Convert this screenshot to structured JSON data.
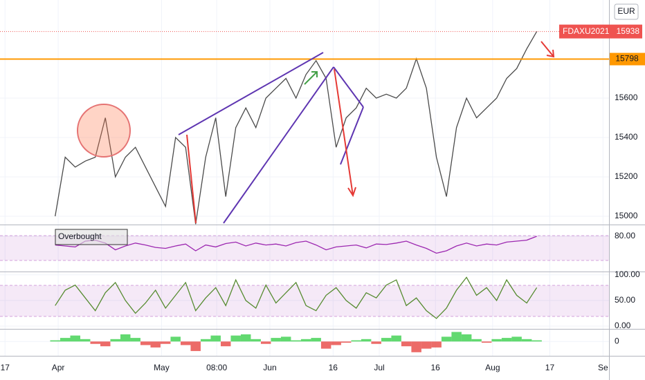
{
  "chart_data": [
    {
      "type": "line",
      "color": "#4a4a4a",
      "values": [
        15000,
        15300,
        15250,
        15280,
        15300,
        15500,
        15200,
        15300,
        15350,
        15250,
        15150,
        15050,
        15400,
        15350,
        14960,
        15300,
        15500,
        15100,
        15450,
        15550,
        15450,
        15600,
        15650,
        15700,
        15600,
        15720,
        15790,
        15700,
        15350,
        15500,
        15550,
        15650,
        15600,
        15620,
        15600,
        15650,
        15800,
        15650,
        15300,
        15100,
        15450,
        15600,
        15500,
        15550,
        15600,
        15700,
        15750,
        15850,
        15938
      ],
      "ylim": [
        14958,
        16098
      ],
      "yticks": [
        15000,
        15200,
        15400,
        15600
      ],
      "xlim": [
        -5.5,
        55.2
      ],
      "xticks": [
        {
          "value": -5.0,
          "label": "17"
        },
        {
          "value": 0.3,
          "label": "Apr"
        },
        {
          "value": 10.6,
          "label": "May"
        },
        {
          "value": 16.1,
          "label": "08:00"
        },
        {
          "value": 21.4,
          "label": "Jun"
        },
        {
          "value": 27.7,
          "label": "16"
        },
        {
          "value": 32.3,
          "label": "Jul"
        },
        {
          "value": 37.9,
          "label": "16"
        },
        {
          "value": 43.6,
          "label": "Aug"
        },
        {
          "value": 49.3,
          "label": "17"
        },
        {
          "value": 54.6,
          "label": "Se"
        }
      ],
      "currency": "EUR",
      "symbol": "FDAXU2021",
      "last_price": 15938,
      "last_color": "#ef5350",
      "level": 15798,
      "level_color": "#ff9800",
      "grid": true
    },
    {
      "type": "line",
      "color": "#9c27b0",
      "annotation": "Overbought",
      "values": [
        62,
        60,
        58,
        70,
        72,
        66,
        52,
        60,
        66,
        62,
        57,
        55,
        60,
        64,
        50,
        62,
        58,
        65,
        68,
        60,
        66,
        62,
        64,
        60,
        67,
        70,
        62,
        52,
        58,
        60,
        62,
        56,
        64,
        63,
        66,
        70,
        62,
        55,
        45,
        50,
        60,
        66,
        60,
        64,
        62,
        68,
        70,
        72,
        80
      ],
      "ylim": [
        8.6,
        101.4
      ],
      "yticks": [
        {
          "value": 80,
          "label": "80.00"
        }
      ]
    },
    {
      "type": "line",
      "color": "#558b2f",
      "values": [
        40,
        70,
        80,
        55,
        30,
        65,
        85,
        50,
        25,
        45,
        70,
        35,
        60,
        85,
        30,
        55,
        75,
        40,
        90,
        50,
        35,
        80,
        45,
        65,
        85,
        40,
        30,
        60,
        75,
        50,
        35,
        65,
        55,
        80,
        90,
        40,
        55,
        30,
        15,
        35,
        70,
        95,
        60,
        75,
        50,
        90,
        60,
        45,
        75
      ],
      "ylim": [
        -4,
        105
      ],
      "yticks": [
        {
          "value": 100,
          "label": "100.00"
        },
        {
          "value": 50,
          "label": "50.00"
        },
        {
          "value": 0,
          "label": "0.00"
        }
      ]
    },
    {
      "type": "bar",
      "positive_color": "#2ecc40",
      "negative_color": "#e53935",
      "values": [
        1,
        3,
        5,
        2,
        -2,
        -4,
        2,
        6,
        3,
        -3,
        -5,
        -2,
        4,
        -3,
        -8,
        2,
        5,
        -4,
        5,
        6,
        2,
        -2,
        3,
        4,
        1,
        2,
        3,
        -6,
        -3,
        -1,
        1,
        2,
        -2,
        3,
        5,
        -4,
        -9,
        -6,
        -5,
        4,
        8,
        6,
        2,
        -1,
        2,
        3,
        4,
        2,
        1
      ],
      "ylim": [
        -12,
        10
      ],
      "yticks": [
        0
      ]
    }
  ]
}
